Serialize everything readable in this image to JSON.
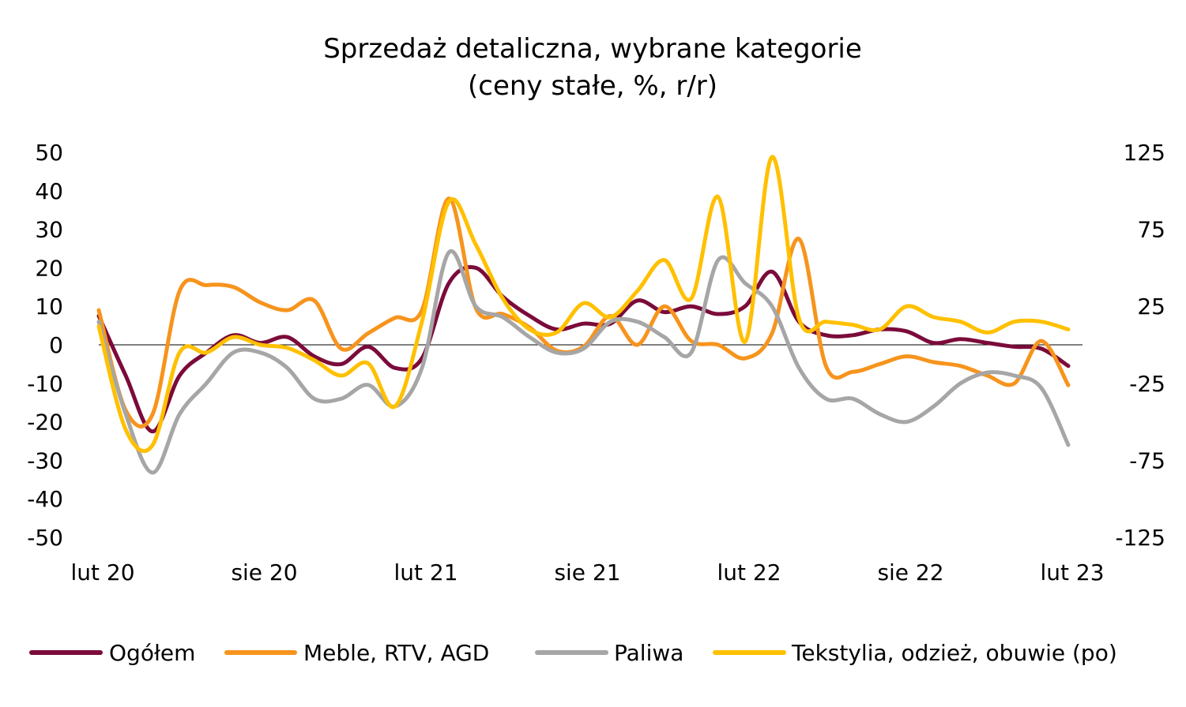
{
  "chart_data": {
    "type": "line",
    "title": "Sprzedaż detaliczna, wybrane kategorie",
    "subtitle": "(ceny stałe, %, r/r)",
    "x_tick_labels": [
      "lut 20",
      "sie 20",
      "lut 21",
      "sie 21",
      "lut 22",
      "sie 22",
      "lut 23"
    ],
    "x_months": [
      "2020-02",
      "2020-03",
      "2020-04",
      "2020-05",
      "2020-06",
      "2020-07",
      "2020-08",
      "2020-09",
      "2020-10",
      "2020-11",
      "2020-12",
      "2021-01",
      "2021-02",
      "2021-03",
      "2021-04",
      "2021-05",
      "2021-06",
      "2021-07",
      "2021-08",
      "2021-09",
      "2021-10",
      "2021-11",
      "2021-12",
      "2022-01",
      "2022-02",
      "2022-03",
      "2022-04",
      "2022-05",
      "2022-06",
      "2022-07",
      "2022-08",
      "2022-09",
      "2022-10",
      "2022-11",
      "2022-12",
      "2023-01",
      "2023-02"
    ],
    "y_left": {
      "ylim": [
        -50,
        50
      ],
      "ticks": [
        "50",
        "40",
        "30",
        "20",
        "10",
        "0",
        "-10",
        "-20",
        "-30",
        "-40",
        "-50"
      ]
    },
    "y_right": {
      "ylim": [
        -125,
        125
      ],
      "ticks": [
        "125",
        "75",
        "25",
        "-25",
        "-75",
        "-125"
      ]
    },
    "grid": false,
    "zero_line": true,
    "legend_position": "bottom",
    "series": [
      {
        "name": "Ogółem",
        "axis": "left",
        "color": "#7B0B3A",
        "values": [
          7.5,
          -8.0,
          -22.5,
          -8.0,
          -2.0,
          2.5,
          0.5,
          2.0,
          -3.0,
          -5.0,
          -0.5,
          -6.0,
          -3.5,
          16.0,
          20.0,
          12.5,
          7.5,
          4.0,
          5.5,
          5.5,
          11.5,
          8.5,
          10.0,
          8.0,
          10.0,
          19.0,
          6.0,
          2.5,
          2.5,
          4.0,
          3.5,
          0.5,
          1.5,
          0.5,
          -0.5,
          -1.0,
          -5.5
        ]
      },
      {
        "name": "Meble, RTV, AGD",
        "axis": "left",
        "color": "#F7941D",
        "values": [
          9.0,
          -17.0,
          -18.0,
          14.0,
          15.5,
          15.0,
          11.0,
          9.0,
          11.5,
          -1.0,
          3.0,
          7.0,
          9.0,
          38.0,
          9.5,
          8.0,
          4.5,
          -1.5,
          -0.5,
          7.5,
          0.0,
          10.0,
          1.0,
          0.0,
          -3.5,
          3.0,
          27.5,
          -5.5,
          -7.0,
          -5.0,
          -3.0,
          -4.5,
          -5.5,
          -8.0,
          -10.0,
          1.0,
          -10.5
        ]
      },
      {
        "name": "Paliwa",
        "axis": "right",
        "color": "#A6A6A6",
        "values": [
          15.0,
          -45.0,
          -83.0,
          -45.0,
          -25.0,
          -5.0,
          -5.0,
          -15.0,
          -35.0,
          -35.0,
          -26.0,
          -40.0,
          -15.0,
          60.0,
          25.0,
          18.0,
          5.0,
          -5.0,
          -2.5,
          15.0,
          15.0,
          5.0,
          -5.0,
          55.0,
          40.0,
          25.0,
          -15.0,
          -35.0,
          -35.0,
          -45.0,
          -50.0,
          -40.0,
          -25.0,
          -18.0,
          -20.0,
          -28.0,
          -65.0
        ]
      },
      {
        "name": "Tekstylia, odzież, obuwie (po)",
        "axis": "right",
        "color": "#FFC000",
        "values": [
          12.0,
          -55.0,
          -65.0,
          -5.0,
          -5.0,
          5.0,
          0.0,
          -2.0,
          -10.0,
          -20.0,
          -12.0,
          -40.0,
          15.0,
          93.0,
          65.0,
          30.0,
          10.0,
          8.0,
          27.0,
          18.0,
          35.0,
          55.0,
          30.0,
          96.0,
          2.0,
          122.0,
          17.0,
          15.0,
          13.0,
          10.0,
          25.0,
          18.0,
          15.0,
          8.0,
          15.0,
          15.0,
          10.0
        ]
      }
    ]
  }
}
